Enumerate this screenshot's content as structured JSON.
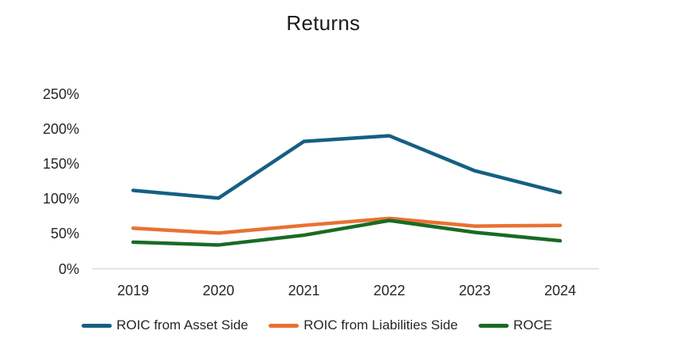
{
  "title": "Returns",
  "chart_data": {
    "type": "line",
    "title": "Returns",
    "categories": [
      "2019",
      "2020",
      "2021",
      "2022",
      "2023",
      "2024"
    ],
    "series": [
      {
        "name": "ROIC from Asset Side",
        "color": "#156082",
        "values": [
          112,
          101,
          182,
          190,
          140,
          109
        ]
      },
      {
        "name": "ROIC from Liabilities Side",
        "color": "#E97132",
        "values": [
          58,
          51,
          62,
          72,
          61,
          62
        ]
      },
      {
        "name": "ROCE",
        "color": "#196B24",
        "values": [
          38,
          34,
          48,
          69,
          52,
          40
        ]
      }
    ],
    "xlabel": "",
    "ylabel": "",
    "ylim": [
      0,
      250
    ],
    "yticks": [
      0,
      50,
      100,
      150,
      200,
      250
    ],
    "ytick_labels": [
      "0%",
      "50%",
      "100%",
      "150%",
      "200%",
      "250%"
    ],
    "grid": false,
    "legend_position": "bottom",
    "axis_line_color": "#d9d9d9",
    "text_color": "#262626",
    "background_color": "#ffffff"
  }
}
